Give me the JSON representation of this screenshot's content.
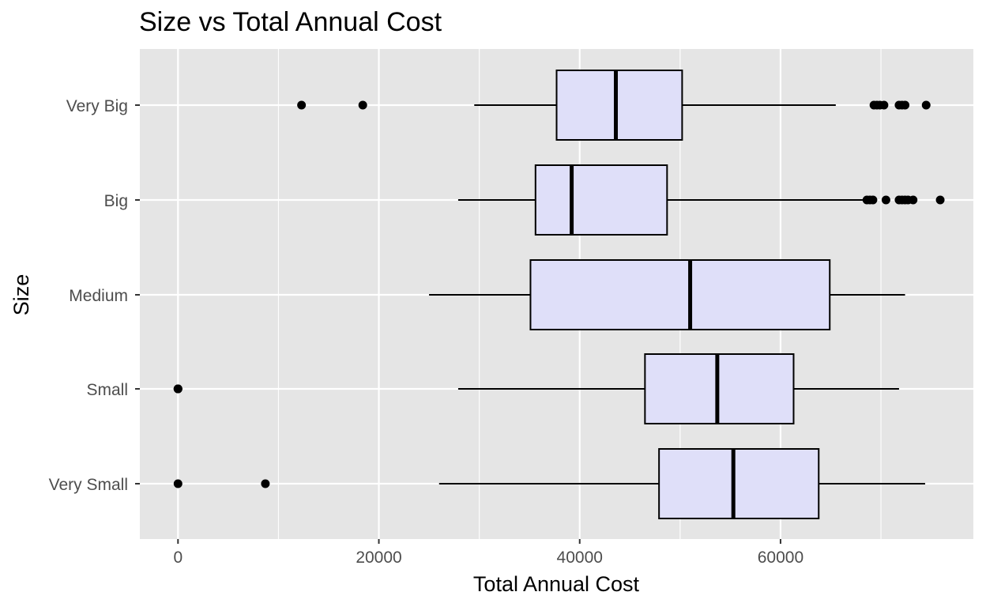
{
  "chart_data": {
    "type": "boxplot",
    "orientation": "horizontal",
    "title": "Size vs Total Annual Cost",
    "xlabel": "Total Annual Cost",
    "ylabel": "Size",
    "xlim": [
      -3800,
      79200
    ],
    "x_ticks": [
      0,
      20000,
      40000,
      60000
    ],
    "x_tick_labels": [
      "0",
      "20000",
      "40000",
      "60000"
    ],
    "grid": true,
    "legend": "none",
    "colors": {
      "panel_background": "#e5e5e5",
      "grid": "#ffffff",
      "box_fill": "#dfdff9",
      "box_stroke": "#000000",
      "outlier": "#000000"
    },
    "categories": [
      "Very Big",
      "Big",
      "Medium",
      "Small",
      "Very Small"
    ],
    "boxes": [
      {
        "category": "Very Big",
        "whisker_low": 29500,
        "q1": 37700,
        "median": 43600,
        "q3": 50200,
        "whisker_high": 65500,
        "outliers": [
          12300,
          18400,
          69300,
          69600,
          69900,
          70300,
          71800,
          72100,
          72400,
          74500
        ]
      },
      {
        "category": "Big",
        "whisker_low": 27900,
        "q1": 35600,
        "median": 39200,
        "q3": 48700,
        "whisker_high": 68200,
        "outliers": [
          68600,
          68900,
          69200,
          70500,
          71800,
          72100,
          72400,
          72700,
          73200,
          75900
        ]
      },
      {
        "category": "Medium",
        "whisker_low": 25000,
        "q1": 35100,
        "median": 51000,
        "q3": 64900,
        "whisker_high": 72400,
        "outliers": []
      },
      {
        "category": "Small",
        "whisker_low": 27900,
        "q1": 46500,
        "median": 53700,
        "q3": 61300,
        "whisker_high": 71800,
        "outliers": [
          0,
          0,
          0
        ]
      },
      {
        "category": "Very Small",
        "whisker_low": 26000,
        "q1": 47900,
        "median": 55300,
        "q3": 63800,
        "whisker_high": 74400,
        "outliers": [
          0,
          8700
        ]
      }
    ]
  }
}
